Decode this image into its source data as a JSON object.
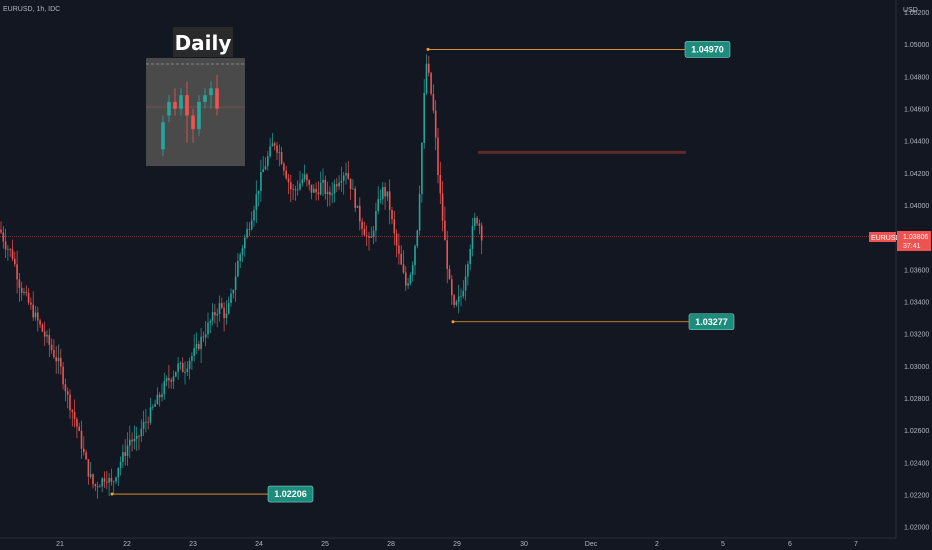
{
  "header": {
    "symbol_info": "EURUSD, 1h, IDC"
  },
  "inset": {
    "title": "Daily"
  },
  "price_badge": {
    "symbol": "EURUSD",
    "price": "1.03806",
    "countdown": "37:41"
  },
  "colors": {
    "up": "#26a69a",
    "down": "#ef5350",
    "background": "#131722",
    "level_line": "#f0a030",
    "label_bg": "#1e8c7c",
    "resistance": "#5d2a2a"
  },
  "chart_data": {
    "type": "candlestick",
    "title": "",
    "y_unit": "USD",
    "y_ticks": [
      "1.05200",
      "1.05000",
      "1.04800",
      "1.04600",
      "1.04400",
      "1.04200",
      "1.04000",
      "1.03800",
      "1.03600",
      "1.03400",
      "1.03200",
      "1.03000",
      "1.02800",
      "1.02600",
      "1.02400",
      "1.02200",
      "1.02000"
    ],
    "x_ticks": [
      "21",
      "22",
      "23",
      "24",
      "25",
      "28",
      "29",
      "30",
      "Dec",
      "2",
      "5",
      "6",
      "7"
    ],
    "ylim": [
      1.0197,
      1.0524
    ],
    "current_price": 1.03806,
    "levels": [
      {
        "value": 1.0497,
        "label": "1.04970",
        "from_day": "28",
        "to_day": "2"
      },
      {
        "value": 1.03277,
        "label": "1.03277",
        "from_day": "29",
        "to_day": "2"
      },
      {
        "value": 1.02206,
        "label": "1.02206",
        "from_day": "22",
        "to_day": "24"
      }
    ],
    "resistance_zone": {
      "value": 1.0433,
      "from_day": "29",
      "to_day": "2"
    },
    "path": [
      [
        0,
        1.0385
      ],
      [
        6,
        1.0375
      ],
      [
        12,
        1.037
      ],
      [
        20,
        1.035
      ],
      [
        28,
        1.034
      ],
      [
        36,
        1.033
      ],
      [
        44,
        1.032
      ],
      [
        52,
        1.031
      ],
      [
        60,
        1.03
      ],
      [
        68,
        1.028
      ],
      [
        76,
        1.0265
      ],
      [
        82,
        1.025
      ],
      [
        88,
        1.0235
      ],
      [
        94,
        1.0225
      ],
      [
        100,
        1.0228
      ],
      [
        106,
        1.0232
      ],
      [
        112,
        1.0226
      ],
      [
        118,
        1.0238
      ],
      [
        124,
        1.0245
      ],
      [
        130,
        1.0255
      ],
      [
        136,
        1.0252
      ],
      [
        142,
        1.0262
      ],
      [
        148,
        1.0268
      ],
      [
        154,
        1.0275
      ],
      [
        160,
        1.0282
      ],
      [
        166,
        1.029
      ],
      [
        172,
        1.0294
      ],
      [
        178,
        1.03
      ],
      [
        184,
        1.0298
      ],
      [
        190,
        1.0305
      ],
      [
        196,
        1.031
      ],
      [
        202,
        1.0318
      ],
      [
        208,
        1.0325
      ],
      [
        214,
        1.0332
      ],
      [
        220,
        1.0338
      ],
      [
        226,
        1.033
      ],
      [
        232,
        1.0345
      ],
      [
        238,
        1.0365
      ],
      [
        244,
        1.0378
      ],
      [
        250,
        1.039
      ],
      [
        256,
        1.0405
      ],
      [
        262,
        1.042
      ],
      [
        268,
        1.043
      ],
      [
        274,
        1.044
      ],
      [
        280,
        1.0432
      ],
      [
        286,
        1.042
      ],
      [
        292,
        1.0408
      ],
      [
        298,
        1.0412
      ],
      [
        304,
        1.0418
      ],
      [
        310,
        1.041
      ],
      [
        316,
        1.0408
      ],
      [
        322,
        1.0414
      ],
      [
        328,
        1.0405
      ],
      [
        334,
        1.0412
      ],
      [
        340,
        1.0418
      ],
      [
        346,
        1.0422
      ],
      [
        352,
        1.041
      ],
      [
        358,
        1.0395
      ],
      [
        364,
        1.0385
      ],
      [
        370,
        1.0375
      ],
      [
        376,
        1.0395
      ],
      [
        382,
        1.041
      ],
      [
        388,
        1.0405
      ],
      [
        394,
        1.0382
      ],
      [
        400,
        1.0365
      ],
      [
        406,
        1.035
      ],
      [
        412,
        1.0362
      ],
      [
        418,
        1.039
      ],
      [
        422,
        1.044
      ],
      [
        426,
        1.049
      ],
      [
        430,
        1.0475
      ],
      [
        434,
        1.0455
      ],
      [
        438,
        1.042
      ],
      [
        442,
        1.0395
      ],
      [
        446,
        1.037
      ],
      [
        450,
        1.0348
      ],
      [
        454,
        1.0335
      ],
      [
        458,
        1.034
      ],
      [
        462,
        1.0345
      ],
      [
        466,
        1.036
      ],
      [
        470,
        1.0375
      ],
      [
        474,
        1.039
      ],
      [
        478,
        1.0392
      ],
      [
        482,
        1.0381
      ]
    ],
    "daily_inset": {
      "candles": [
        {
          "open": 1.03,
          "close": 1.034,
          "high": 1.035,
          "low": 1.029
        },
        {
          "open": 1.035,
          "close": 1.037,
          "high": 1.038,
          "low": 1.034
        },
        {
          "open": 1.037,
          "close": 1.036,
          "high": 1.039,
          "low": 1.035
        },
        {
          "open": 1.036,
          "close": 1.038,
          "high": 1.039,
          "low": 1.035
        },
        {
          "open": 1.038,
          "close": 1.035,
          "high": 1.04,
          "low": 1.031
        },
        {
          "open": 1.035,
          "close": 1.033,
          "high": 1.036,
          "low": 1.031
        },
        {
          "open": 1.033,
          "close": 1.037,
          "high": 1.038,
          "low": 1.032
        },
        {
          "open": 1.037,
          "close": 1.038,
          "high": 1.039,
          "low": 1.036
        },
        {
          "open": 1.038,
          "close": 1.039,
          "high": 1.04,
          "low": 1.036
        },
        {
          "open": 1.039,
          "close": 1.036,
          "high": 1.041,
          "low": 1.035
        }
      ]
    }
  }
}
